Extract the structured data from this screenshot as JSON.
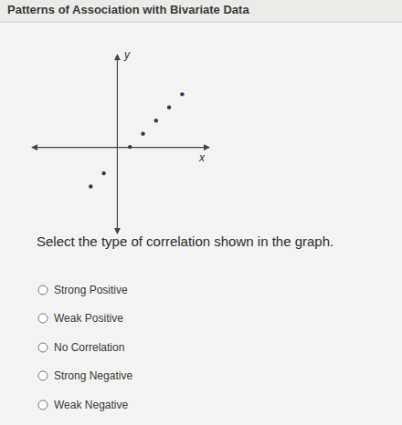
{
  "page": {
    "title": "Patterns of Association with Bivariate Data",
    "question": "Select the type of correlation shown in the graph.",
    "options": [
      "Strong Positive",
      "Weak Positive",
      "No Correlation",
      "Strong Negative",
      "Weak Negative"
    ]
  },
  "chart_data": {
    "type": "scatter",
    "x_label": "x",
    "y_label": "y",
    "x": [
      -2,
      -1,
      1,
      2,
      3,
      4,
      5
    ],
    "values": [
      -3,
      -2,
      0,
      1,
      2,
      3,
      4
    ],
    "xlim": [
      -6.5,
      7
    ],
    "ylim": [
      -6.5,
      7
    ],
    "xticks": [],
    "yticks": [],
    "tick_labels": false,
    "grid": false,
    "color": "#2b3a5c"
  }
}
